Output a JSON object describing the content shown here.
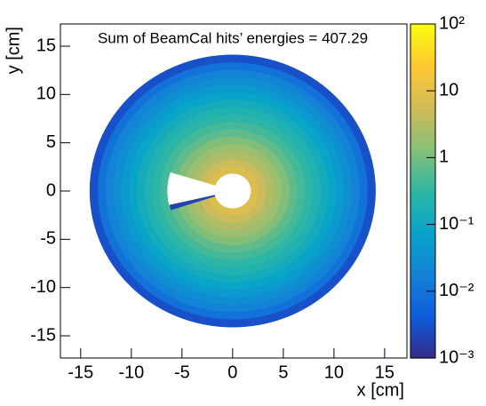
{
  "chart_data": {
    "type": "polar-heatmap",
    "title": "Sum of BeamCal hits’ energies = 407.29",
    "xlabel": "x [cm]",
    "ylabel": "y [cm]",
    "xlim": [
      -17,
      17.2
    ],
    "ylim": [
      -17.3,
      17.3
    ],
    "xticks": [
      -15,
      -10,
      -5,
      0,
      5,
      10,
      15
    ],
    "yticks": [
      -15,
      -10,
      -5,
      0,
      5,
      10,
      15
    ],
    "zlim": [
      0.001,
      100
    ],
    "zscale": "log",
    "zticks": [
      {
        "value": 100,
        "label": "10²"
      },
      10,
      1,
      {
        "value": 0.1,
        "label": "10⁻¹"
      },
      {
        "value": 0.01,
        "label": "10⁻²"
      },
      {
        "value": 0.001,
        "label": "10⁻³"
      }
    ],
    "colormap": [
      "#352a87",
      "#0f5cdd",
      "#1481d6",
      "#06a4ca",
      "#2eb7a4",
      "#87bf77",
      "#d1bb59",
      "#fec832",
      "#f9fb0e"
    ],
    "rings": {
      "edges": [
        1.8,
        2.57,
        3.34,
        4.1,
        4.87,
        5.64,
        6.41,
        7.18,
        7.95,
        8.71,
        9.48,
        10.25,
        11.02,
        11.79,
        12.56,
        13.33,
        14.1
      ],
      "values": [
        8,
        5,
        3,
        2,
        1.2,
        0.7,
        0.45,
        0.3,
        0.2,
        0.13,
        0.08,
        0.05,
        0.03,
        0.02,
        0.01,
        0.003
      ]
    },
    "cutout": {
      "r": [
        1.8,
        6.4
      ],
      "theta": [
        163,
        193
      ]
    },
    "sectors": [
      {
        "r": [
          1.8,
          6.4
        ],
        "theta": [
          193,
          198
        ],
        "value": 0.002
      }
    ]
  }
}
